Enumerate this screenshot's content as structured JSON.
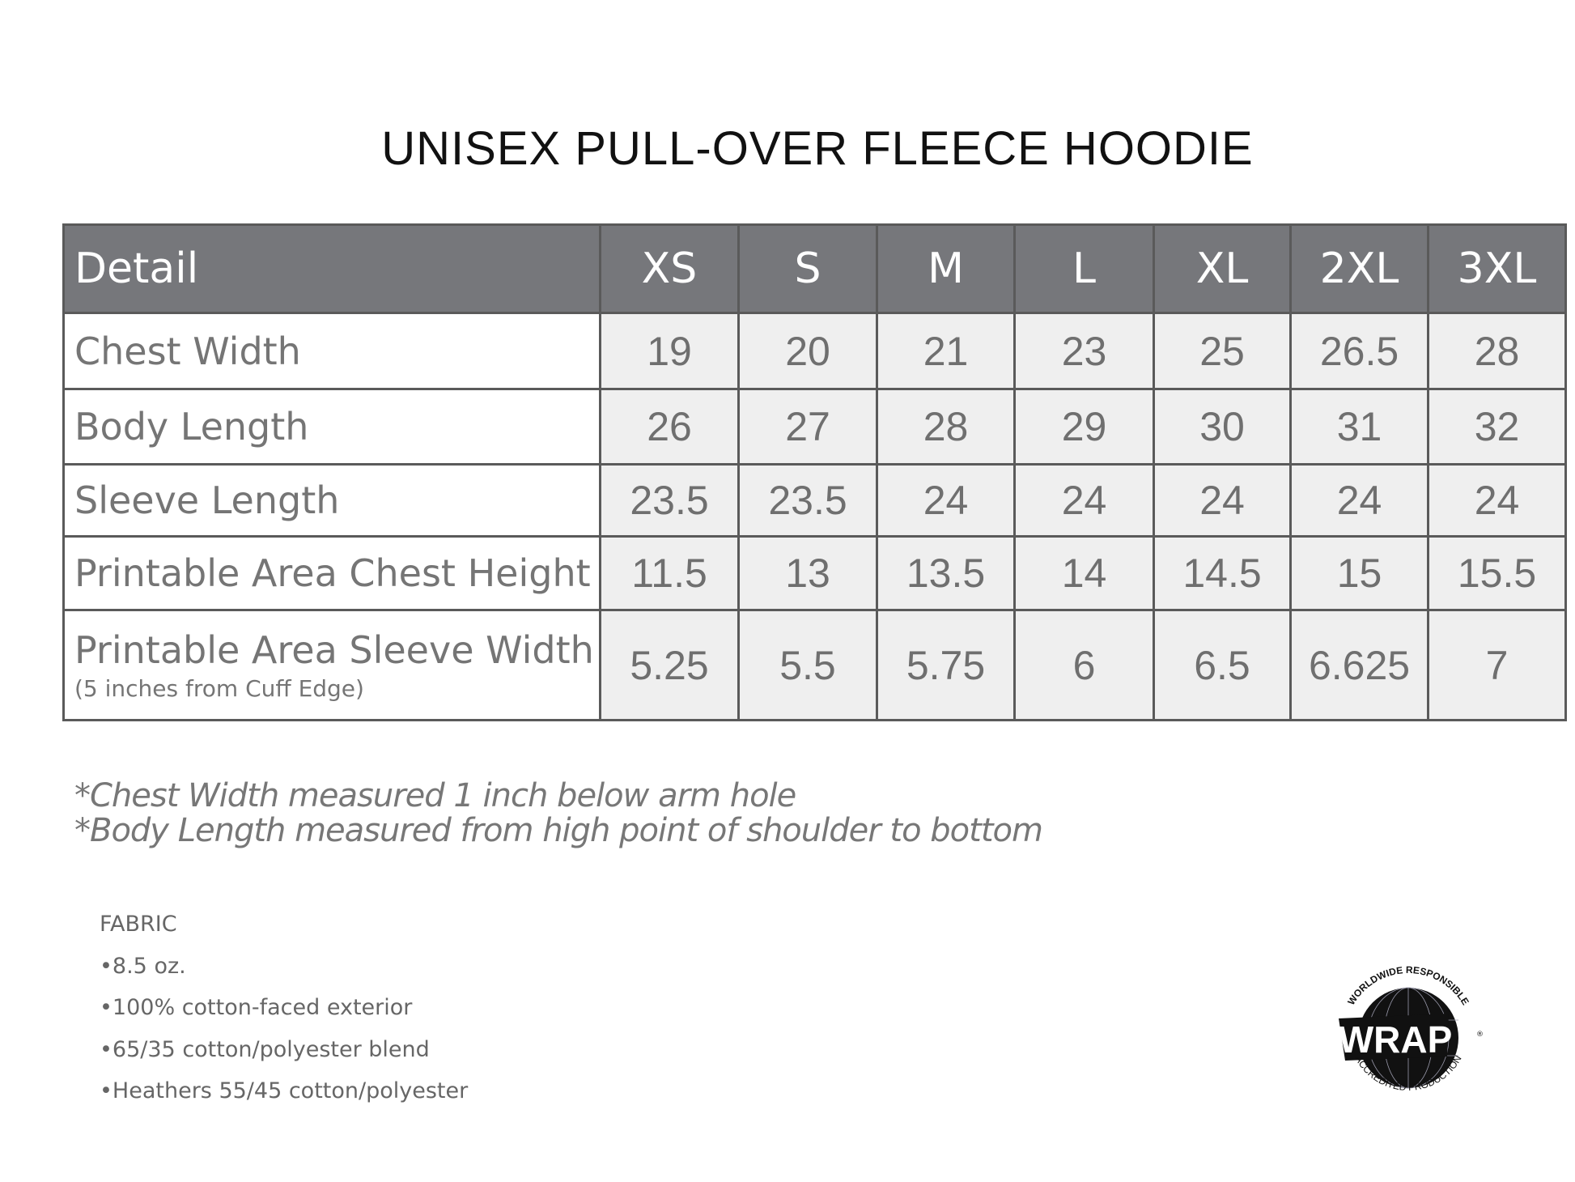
{
  "title": "UNISEX PULL-OVER FLEECE HOODIE",
  "table": {
    "headers": [
      "Detail",
      "XS",
      "S",
      "M",
      "L",
      "XL",
      "2XL",
      "3XL"
    ],
    "rows": [
      {
        "label": "Chest Width",
        "sub": "",
        "values": [
          "19",
          "20",
          "21",
          "23",
          "25",
          "26.5",
          "28"
        ]
      },
      {
        "label": "Body Length",
        "sub": "",
        "values": [
          "26",
          "27",
          "28",
          "29",
          "30",
          "31",
          "32"
        ]
      },
      {
        "label": "Sleeve Length",
        "sub": "",
        "values": [
          "23.5",
          "23.5",
          "24",
          "24",
          "24",
          "24",
          "24"
        ]
      },
      {
        "label": "Printable Area Chest Height",
        "sub": "",
        "values": [
          "11.5",
          "13",
          "13.5",
          "14",
          "14.5",
          "15",
          "15.5"
        ]
      },
      {
        "label": "Printable Area Sleeve Width",
        "sub": "(5 inches from Cuff Edge)",
        "values": [
          "5.25",
          "5.5",
          "5.75",
          "6",
          "6.5",
          "6.625",
          "7"
        ]
      }
    ]
  },
  "notes": [
    "*Chest Width measured 1 inch below arm hole",
    "*Body Length measured from high point of shoulder to bottom"
  ],
  "fabric": {
    "heading": "FABRIC",
    "items": [
      "•8.5 oz.",
      "•100% cotton-faced exterior",
      "•65/35 cotton/polyester blend",
      "•Heathers 55/45 cotton/polyester"
    ]
  },
  "logo": {
    "text": "WRAP",
    "top_text": "WORLDWIDE RESPONSIBLE",
    "bottom_text": "ACCREDITED PRODUCTION"
  },
  "colors": {
    "header_bg": "#76777b",
    "cell_bg": "#efefef",
    "border": "#5a5a5a"
  }
}
